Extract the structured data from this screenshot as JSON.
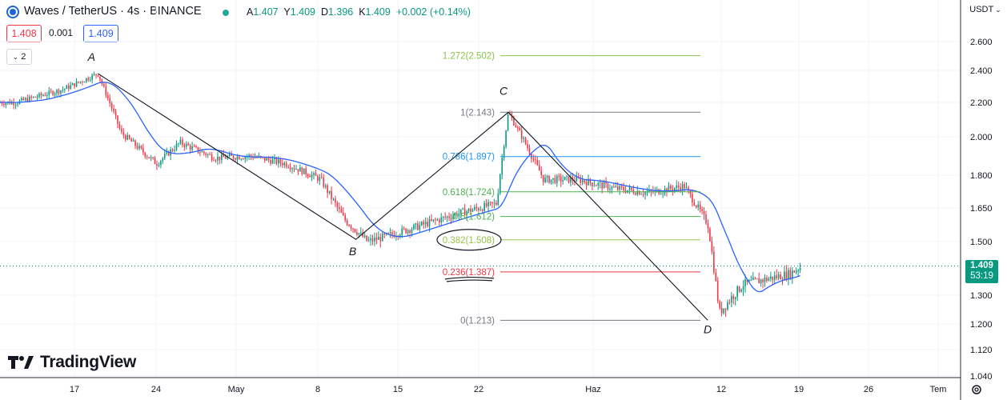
{
  "header": {
    "symbol_title": "Waves / TetherUS · 4s · BINANCE",
    "ohlc": {
      "open_label": "A",
      "open": "1.407",
      "high_label": "Y",
      "high": "1.409",
      "low_label": "D",
      "low": "1.396",
      "close_label": "K",
      "close": "1.409",
      "change": "+0.002 (+0.14%)"
    },
    "sell_price": "1.408",
    "spread": "0.001",
    "buy_price": "1.409",
    "indicators_count": "2"
  },
  "currency_button": "USDT",
  "watermark": "TradingView",
  "current_price": "1.409",
  "countdown": "53:19",
  "colors": {
    "up": "#089981",
    "down": "#f23645",
    "ma": "#2962ff",
    "pattern": "#131722"
  },
  "chart_data": {
    "type": "line",
    "y_axis_ticks": [
      "2.600",
      "2.400",
      "2.200",
      "2.000",
      "1.800",
      "1.650",
      "1.500",
      "1.300",
      "1.200",
      "1.120",
      "1.040"
    ],
    "x_axis_ticks": [
      "17",
      "24",
      "May",
      "8",
      "15",
      "22",
      "Haz",
      "12",
      "19",
      "26",
      "Tem"
    ],
    "grid": true,
    "series": [
      {
        "name": "",
        "x": [
          "Apr 12",
          "Apr 16",
          "Apr 19",
          "Apr 21",
          "Apr 24",
          "Apr 26",
          "Apr 29",
          "May 2",
          "May 5",
          "May 8",
          "May 10",
          "May 12",
          "May 14",
          "May 17",
          "May 20",
          "May 23",
          "May 24",
          "May 27",
          "May 30",
          "Jun 2",
          "Jun 5",
          "Jun 8",
          "Jun 10",
          "Jun 11",
          "Jun 13",
          "Jun 15",
          "Jun 17",
          "Jun 18"
        ],
        "values": [
          2.2,
          2.28,
          2.38,
          2.02,
          1.86,
          1.97,
          1.89,
          1.9,
          1.86,
          1.78,
          1.6,
          1.5,
          1.53,
          1.58,
          1.63,
          1.67,
          2.14,
          1.78,
          1.78,
          1.74,
          1.72,
          1.75,
          1.58,
          1.24,
          1.34,
          1.36,
          1.38,
          1.409
        ]
      }
    ],
    "pattern_points": [
      {
        "label": "A",
        "x": "Apr 19",
        "y": 2.38
      },
      {
        "label": "B",
        "x": "May 11",
        "y": 1.51
      },
      {
        "label": "C",
        "x": "May 24",
        "y": 2.143
      },
      {
        "label": "D",
        "x": "Jun 10",
        "y": 1.213
      }
    ],
    "fibonacci": [
      {
        "label": "1.272(2.502)",
        "level": 2.502,
        "color": "#8bc34a"
      },
      {
        "label": "1(2.143)",
        "level": 2.143,
        "color": "#787b86"
      },
      {
        "label": "0.786(1.897)",
        "level": 1.897,
        "color": "#2196f3"
      },
      {
        "label": "0.618(1.724)",
        "level": 1.724,
        "color": "#4caf50"
      },
      {
        "label": "0.5(1.612)",
        "level": 1.612,
        "color": "#4caf50"
      },
      {
        "label": "0.382(1.508)",
        "level": 1.508,
        "color": "#9bc34a"
      },
      {
        "label": "0.236(1.387)",
        "level": 1.387,
        "color": "#f23645"
      },
      {
        "label": "0(1.213)",
        "level": 1.213,
        "color": "#787b86"
      }
    ]
  }
}
